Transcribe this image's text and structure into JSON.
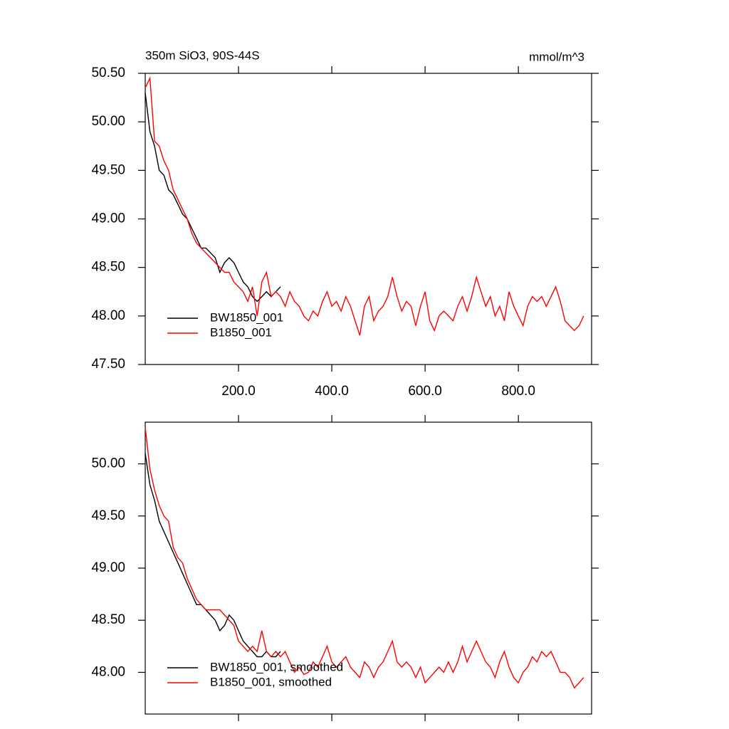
{
  "chart_data": [
    {
      "type": "line",
      "title": "350m SiO3, 90S-44S",
      "units": "mmol/m^3",
      "xlim": [
        0,
        957
      ],
      "xticks": [
        {
          "value": 200,
          "label": "200.0"
        },
        {
          "value": 400,
          "label": "400.0"
        },
        {
          "value": 600,
          "label": "600.0"
        },
        {
          "value": 800,
          "label": "800.0"
        }
      ],
      "ylim": [
        47.5,
        50.5
      ],
      "yticks": [
        {
          "value": 47.5,
          "label": "47.50"
        },
        {
          "value": 48,
          "label": "48.00"
        },
        {
          "value": 48.5,
          "label": "48.50"
        },
        {
          "value": 49,
          "label": "49.00"
        },
        {
          "value": 49.5,
          "label": "49.50"
        },
        {
          "value": 50,
          "label": "50.00"
        },
        {
          "value": 50.5,
          "label": "50.50"
        }
      ],
      "legend": "lower left",
      "series": [
        {
          "name": "BW1850_001",
          "color": "#000000",
          "x": [
            0,
            10,
            20,
            30,
            40,
            50,
            60,
            70,
            80,
            90,
            100,
            110,
            120,
            130,
            140,
            150,
            160,
            170,
            180,
            190,
            200,
            210,
            220,
            230,
            240,
            250,
            260,
            270,
            280,
            290
          ],
          "values": [
            50.3,
            49.9,
            49.75,
            49.5,
            49.45,
            49.3,
            49.25,
            49.15,
            49.05,
            49.0,
            48.9,
            48.8,
            48.7,
            48.7,
            48.65,
            48.6,
            48.45,
            48.55,
            48.6,
            48.55,
            48.45,
            48.35,
            48.3,
            48.2,
            48.15,
            48.2,
            48.25,
            48.2,
            48.25,
            48.3
          ]
        },
        {
          "name": "B1850_001",
          "color": "#ff0000",
          "x": [
            0,
            10,
            20,
            30,
            40,
            50,
            60,
            70,
            80,
            90,
            100,
            110,
            120,
            130,
            140,
            150,
            160,
            170,
            180,
            190,
            200,
            210,
            220,
            230,
            240,
            250,
            260,
            270,
            280,
            290,
            300,
            310,
            320,
            330,
            340,
            350,
            360,
            370,
            380,
            390,
            400,
            410,
            420,
            430,
            440,
            450,
            460,
            470,
            480,
            490,
            500,
            510,
            520,
            530,
            540,
            550,
            560,
            570,
            580,
            590,
            600,
            610,
            620,
            630,
            640,
            650,
            660,
            670,
            680,
            690,
            700,
            710,
            720,
            730,
            740,
            750,
            760,
            770,
            780,
            790,
            800,
            810,
            820,
            830,
            840,
            850,
            860,
            870,
            880,
            890,
            900,
            910,
            920,
            930,
            940
          ],
          "values": [
            50.35,
            50.45,
            49.8,
            49.75,
            49.6,
            49.5,
            49.3,
            49.2,
            49.1,
            49.0,
            48.85,
            48.75,
            48.7,
            48.65,
            48.6,
            48.55,
            48.5,
            48.45,
            48.45,
            48.35,
            48.3,
            48.25,
            48.15,
            48.3,
            48.0,
            48.35,
            48.45,
            48.2,
            48.25,
            48.2,
            48.1,
            48.25,
            48.15,
            48.1,
            48.0,
            47.95,
            48.05,
            48.0,
            48.15,
            48.25,
            48.1,
            48.15,
            48.05,
            48.2,
            48.1,
            47.95,
            47.8,
            48.1,
            48.2,
            47.95,
            48.05,
            48.1,
            48.2,
            48.4,
            48.2,
            48.05,
            48.15,
            48.1,
            47.9,
            48.1,
            48.25,
            47.95,
            47.85,
            48.0,
            48.05,
            48.0,
            47.95,
            48.1,
            48.2,
            48.05,
            48.2,
            48.4,
            48.25,
            48.1,
            48.2,
            48.0,
            48.1,
            47.95,
            48.25,
            48.1,
            48.0,
            47.9,
            48.1,
            48.2,
            48.15,
            48.2,
            48.1,
            48.2,
            48.3,
            48.15,
            47.95,
            47.9,
            47.85,
            47.9,
            48.0
          ]
        }
      ]
    },
    {
      "type": "line",
      "xlim": [
        0,
        957
      ],
      "xticks": [
        200,
        400,
        600,
        800
      ],
      "xtick_labels": false,
      "ylim": [
        47.6,
        50.4
      ],
      "yticks": [
        {
          "value": 48,
          "label": "48.00"
        },
        {
          "value": 48.5,
          "label": "48.50"
        },
        {
          "value": 49,
          "label": "49.00"
        },
        {
          "value": 49.5,
          "label": "49.50"
        },
        {
          "value": 50,
          "label": "50.00"
        }
      ],
      "legend": "lower left",
      "series": [
        {
          "name": "BW1850_001, smoothed",
          "color": "#000000",
          "x": [
            0,
            10,
            20,
            30,
            40,
            50,
            60,
            70,
            80,
            90,
            100,
            110,
            120,
            130,
            140,
            150,
            160,
            170,
            180,
            190,
            200,
            210,
            220,
            230,
            240,
            250,
            260,
            270,
            280,
            290
          ],
          "values": [
            50.1,
            49.8,
            49.65,
            49.45,
            49.35,
            49.25,
            49.15,
            49.05,
            48.95,
            48.85,
            48.75,
            48.65,
            48.65,
            48.6,
            48.55,
            48.5,
            48.4,
            48.45,
            48.55,
            48.5,
            48.4,
            48.3,
            48.25,
            48.2,
            48.15,
            48.15,
            48.2,
            48.15,
            48.15,
            48.2
          ]
        },
        {
          "name": "B1850_001, smoothed",
          "color": "#ff0000",
          "x": [
            0,
            10,
            20,
            30,
            40,
            50,
            60,
            70,
            80,
            90,
            100,
            110,
            120,
            130,
            140,
            150,
            160,
            170,
            180,
            190,
            200,
            210,
            220,
            230,
            240,
            250,
            260,
            270,
            280,
            290,
            300,
            310,
            320,
            330,
            340,
            350,
            360,
            370,
            380,
            390,
            400,
            410,
            420,
            430,
            440,
            450,
            460,
            470,
            480,
            490,
            500,
            510,
            520,
            530,
            540,
            550,
            560,
            570,
            580,
            590,
            600,
            610,
            620,
            630,
            640,
            650,
            660,
            670,
            680,
            690,
            700,
            710,
            720,
            730,
            740,
            750,
            760,
            770,
            780,
            790,
            800,
            810,
            820,
            830,
            840,
            850,
            860,
            870,
            880,
            890,
            900,
            910,
            920,
            930,
            940
          ],
          "values": [
            50.35,
            49.95,
            49.75,
            49.6,
            49.5,
            49.45,
            49.2,
            49.1,
            49.05,
            48.9,
            48.8,
            48.7,
            48.65,
            48.6,
            48.6,
            48.6,
            48.6,
            48.55,
            48.5,
            48.45,
            48.3,
            48.25,
            48.2,
            48.25,
            48.2,
            48.4,
            48.2,
            48.15,
            48.2,
            48.15,
            48.2,
            48.1,
            48.0,
            48.05,
            47.98,
            48.0,
            48.1,
            48.05,
            48.15,
            48.25,
            48.1,
            48.05,
            48.1,
            48.15,
            48.05,
            48.0,
            47.95,
            48.1,
            48.05,
            47.95,
            48.05,
            48.1,
            48.2,
            48.3,
            48.1,
            48.05,
            48.1,
            48.05,
            47.95,
            48.05,
            47.9,
            47.95,
            48.0,
            48.05,
            48.0,
            48.1,
            48.0,
            48.1,
            48.25,
            48.1,
            48.2,
            48.3,
            48.2,
            48.1,
            48.05,
            47.95,
            48.1,
            48.2,
            48.05,
            47.95,
            47.9,
            48.0,
            48.05,
            48.15,
            48.1,
            48.2,
            48.15,
            48.2,
            48.1,
            48.0,
            48.0,
            47.95,
            47.85,
            47.9,
            47.95
          ]
        }
      ]
    }
  ]
}
